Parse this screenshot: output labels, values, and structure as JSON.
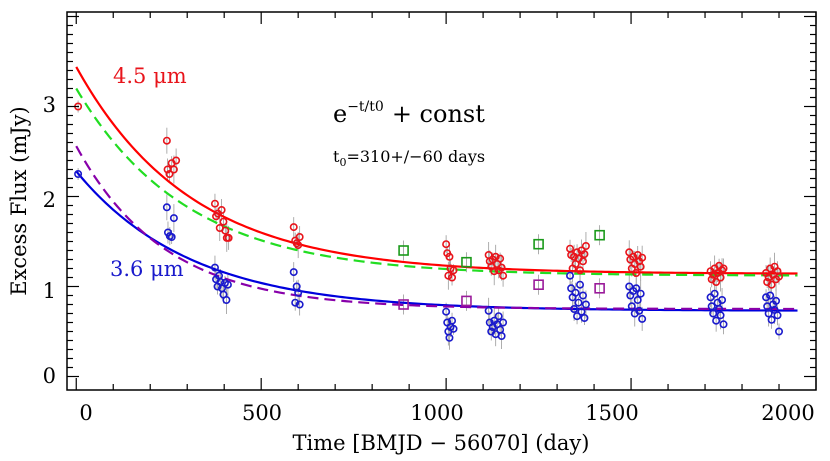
{
  "chart_data": {
    "type": "scatter",
    "xlabel": "Time [BMJD − 56070] (day)",
    "ylabel": "Excess Flux (mJy)",
    "xlim": [
      -25,
      2000
    ],
    "ylim": [
      -0.15,
      4.05
    ],
    "x_ticks": [
      "0",
      "500",
      "1000",
      "1500",
      "2000"
    ],
    "y_ticks": [
      "0",
      "1",
      "2",
      "3"
    ],
    "grid": false,
    "annotations": {
      "formula": "e−t/t0 + const",
      "formula_base": "e",
      "formula_exp": "−t/t0",
      "formula_rest": "+ const",
      "t0_text": "t0=310+/−60 days",
      "t0_sym": "t",
      "t0_sub": "0",
      "t0_rest": "=310+/−60 days",
      "label_45": "4.5 μm",
      "label_36": "3.6 μm"
    },
    "colors": {
      "ch2": "#e8141b",
      "ch1": "#1a1acc",
      "fit_ch2": "#ff0000",
      "fit_ch1": "#0000dd",
      "alt_fit_ch2": "#22dd22",
      "alt_fit_ch1": "#8800aa",
      "square_ch2": "#1a9a1a",
      "square_ch1": "#9a1a9a",
      "errorbar": "#999999"
    },
    "fits": [
      {
        "key": "fit_45",
        "color": "fit_ch2",
        "dash": false,
        "amp": 2.3,
        "t0": 310,
        "const": 1.14
      },
      {
        "key": "fit_36",
        "color": "fit_ch1",
        "dash": false,
        "amp": 1.55,
        "t0": 310,
        "const": 0.73
      },
      {
        "key": "alt_fit_45",
        "color": "alt_fit_ch2",
        "dash": true,
        "amp": 2.08,
        "t0": 300,
        "const": 1.12
      },
      {
        "key": "alt_fit_36",
        "color": "alt_fit_ch1",
        "dash": true,
        "amp": 1.81,
        "t0": 240,
        "const": 0.75
      }
    ],
    "series": [
      {
        "key": "ch2-4.5um",
        "color": "ch2",
        "marker": "circle",
        "points": [
          [
            5,
            3.0
          ],
          [
            245,
            2.62
          ],
          [
            247,
            2.3
          ],
          [
            252,
            2.25
          ],
          [
            258,
            2.37
          ],
          [
            264,
            2.3
          ],
          [
            270,
            2.4
          ],
          [
            375,
            1.92
          ],
          [
            378,
            1.78
          ],
          [
            383,
            1.81
          ],
          [
            388,
            1.65
          ],
          [
            393,
            1.85
          ],
          [
            398,
            1.72
          ],
          [
            403,
            1.62
          ],
          [
            407,
            1.54
          ],
          [
            412,
            1.54
          ],
          [
            588,
            1.66
          ],
          [
            592,
            1.51
          ],
          [
            596,
            1.48
          ],
          [
            600,
            1.46
          ],
          [
            604,
            1.55
          ],
          [
            1000,
            1.47
          ],
          [
            1003,
            1.37
          ],
          [
            1006,
            1.12
          ],
          [
            1009,
            1.33
          ],
          [
            1012,
            1.2
          ],
          [
            1016,
            1.1
          ],
          [
            1020,
            1.18
          ],
          [
            1115,
            1.35
          ],
          [
            1118,
            1.28
          ],
          [
            1122,
            1.22
          ],
          [
            1126,
            1.3
          ],
          [
            1130,
            1.17
          ],
          [
            1134,
            1.33
          ],
          [
            1138,
            1.25
          ],
          [
            1142,
            1.18
          ],
          [
            1146,
            1.31
          ],
          [
            1150,
            1.21
          ],
          [
            1154,
            1.12
          ],
          [
            1335,
            1.42
          ],
          [
            1338,
            1.35
          ],
          [
            1342,
            1.2
          ],
          [
            1346,
            1.33
          ],
          [
            1350,
            1.25
          ],
          [
            1354,
            1.38
          ],
          [
            1358,
            1.31
          ],
          [
            1362,
            1.18
          ],
          [
            1366,
            1.4
          ],
          [
            1370,
            1.28
          ],
          [
            1374,
            1.36
          ],
          [
            1378,
            1.45
          ],
          [
            1495,
            1.38
          ],
          [
            1498,
            1.3
          ],
          [
            1502,
            1.2
          ],
          [
            1506,
            1.33
          ],
          [
            1510,
            1.25
          ],
          [
            1514,
            1.15
          ],
          [
            1518,
            1.35
          ],
          [
            1522,
            1.28
          ],
          [
            1526,
            1.22
          ],
          [
            1530,
            1.32
          ],
          [
            1715,
            1.17
          ],
          [
            1718,
            1.08
          ],
          [
            1722,
            1.13
          ],
          [
            1726,
            1.2
          ],
          [
            1730,
            1.05
          ],
          [
            1734,
            1.15
          ],
          [
            1738,
            1.23
          ],
          [
            1742,
            1.1
          ],
          [
            1746,
            1.18
          ],
          [
            1750,
            1.2
          ],
          [
            1865,
            1.15
          ],
          [
            1868,
            1.05
          ],
          [
            1872,
            1.1
          ],
          [
            1876,
            1.2
          ],
          [
            1880,
            1.02
          ],
          [
            1884,
            1.13
          ],
          [
            1888,
            1.22
          ],
          [
            1892,
            1.08
          ],
          [
            1896,
            1.17
          ],
          [
            1900,
            1.11
          ]
        ]
      },
      {
        "key": "ch1-3.6um",
        "color": "ch1",
        "marker": "circle",
        "points": [
          [
            5,
            2.25
          ],
          [
            245,
            1.88
          ],
          [
            248,
            1.6
          ],
          [
            253,
            1.56
          ],
          [
            258,
            1.55
          ],
          [
            264,
            1.76
          ],
          [
            375,
            1.21
          ],
          [
            378,
            1.08
          ],
          [
            382,
            1.0
          ],
          [
            386,
            1.12
          ],
          [
            390,
            1.05
          ],
          [
            394,
            0.98
          ],
          [
            398,
            0.91
          ],
          [
            402,
            1.04
          ],
          [
            406,
            0.85
          ],
          [
            410,
            1.02
          ],
          [
            588,
            1.16
          ],
          [
            592,
            0.82
          ],
          [
            596,
            1.0
          ],
          [
            600,
            0.93
          ],
          [
            604,
            0.8
          ],
          [
            1000,
            0.72
          ],
          [
            1003,
            0.6
          ],
          [
            1006,
            0.5
          ],
          [
            1009,
            0.43
          ],
          [
            1012,
            0.55
          ],
          [
            1016,
            0.62
          ],
          [
            1020,
            0.53
          ],
          [
            1115,
            0.73
          ],
          [
            1118,
            0.6
          ],
          [
            1122,
            0.5
          ],
          [
            1126,
            0.55
          ],
          [
            1130,
            0.62
          ],
          [
            1134,
            0.47
          ],
          [
            1138,
            0.58
          ],
          [
            1142,
            0.67
          ],
          [
            1146,
            0.52
          ],
          [
            1150,
            0.45
          ],
          [
            1154,
            0.6
          ],
          [
            1335,
            1.12
          ],
          [
            1338,
            0.98
          ],
          [
            1342,
            0.88
          ],
          [
            1346,
            0.75
          ],
          [
            1350,
            0.93
          ],
          [
            1354,
            0.67
          ],
          [
            1358,
            0.82
          ],
          [
            1362,
            1.02
          ],
          [
            1366,
            0.72
          ],
          [
            1370,
            0.9
          ],
          [
            1374,
            0.65
          ],
          [
            1378,
            0.8
          ],
          [
            1495,
            1.0
          ],
          [
            1498,
            0.9
          ],
          [
            1502,
            0.78
          ],
          [
            1506,
            0.95
          ],
          [
            1510,
            0.7
          ],
          [
            1514,
            0.98
          ],
          [
            1518,
            0.85
          ],
          [
            1522,
            0.73
          ],
          [
            1526,
            0.92
          ],
          [
            1530,
            0.64
          ],
          [
            1715,
            0.88
          ],
          [
            1718,
            0.78
          ],
          [
            1722,
            0.7
          ],
          [
            1726,
            0.92
          ],
          [
            1730,
            0.62
          ],
          [
            1734,
            0.82
          ],
          [
            1738,
            0.75
          ],
          [
            1742,
            0.68
          ],
          [
            1746,
            0.85
          ],
          [
            1750,
            0.58
          ],
          [
            1865,
            0.88
          ],
          [
            1868,
            0.78
          ],
          [
            1872,
            0.7
          ],
          [
            1876,
            0.9
          ],
          [
            1880,
            0.63
          ],
          [
            1884,
            0.8
          ],
          [
            1888,
            0.74
          ],
          [
            1892,
            0.84
          ],
          [
            1896,
            0.68
          ],
          [
            1900,
            0.5
          ]
        ]
      },
      {
        "key": "ch2-squares",
        "color": "square_ch2",
        "marker": "square",
        "points": [
          [
            885,
            1.4
          ],
          [
            1055,
            1.27
          ],
          [
            1250,
            1.47
          ],
          [
            1415,
            1.57
          ]
        ]
      },
      {
        "key": "ch1-squares",
        "color": "square_ch1",
        "marker": "square",
        "points": [
          [
            885,
            0.8
          ],
          [
            1055,
            0.84
          ],
          [
            1250,
            1.02
          ],
          [
            1415,
            0.98
          ]
        ]
      }
    ]
  }
}
